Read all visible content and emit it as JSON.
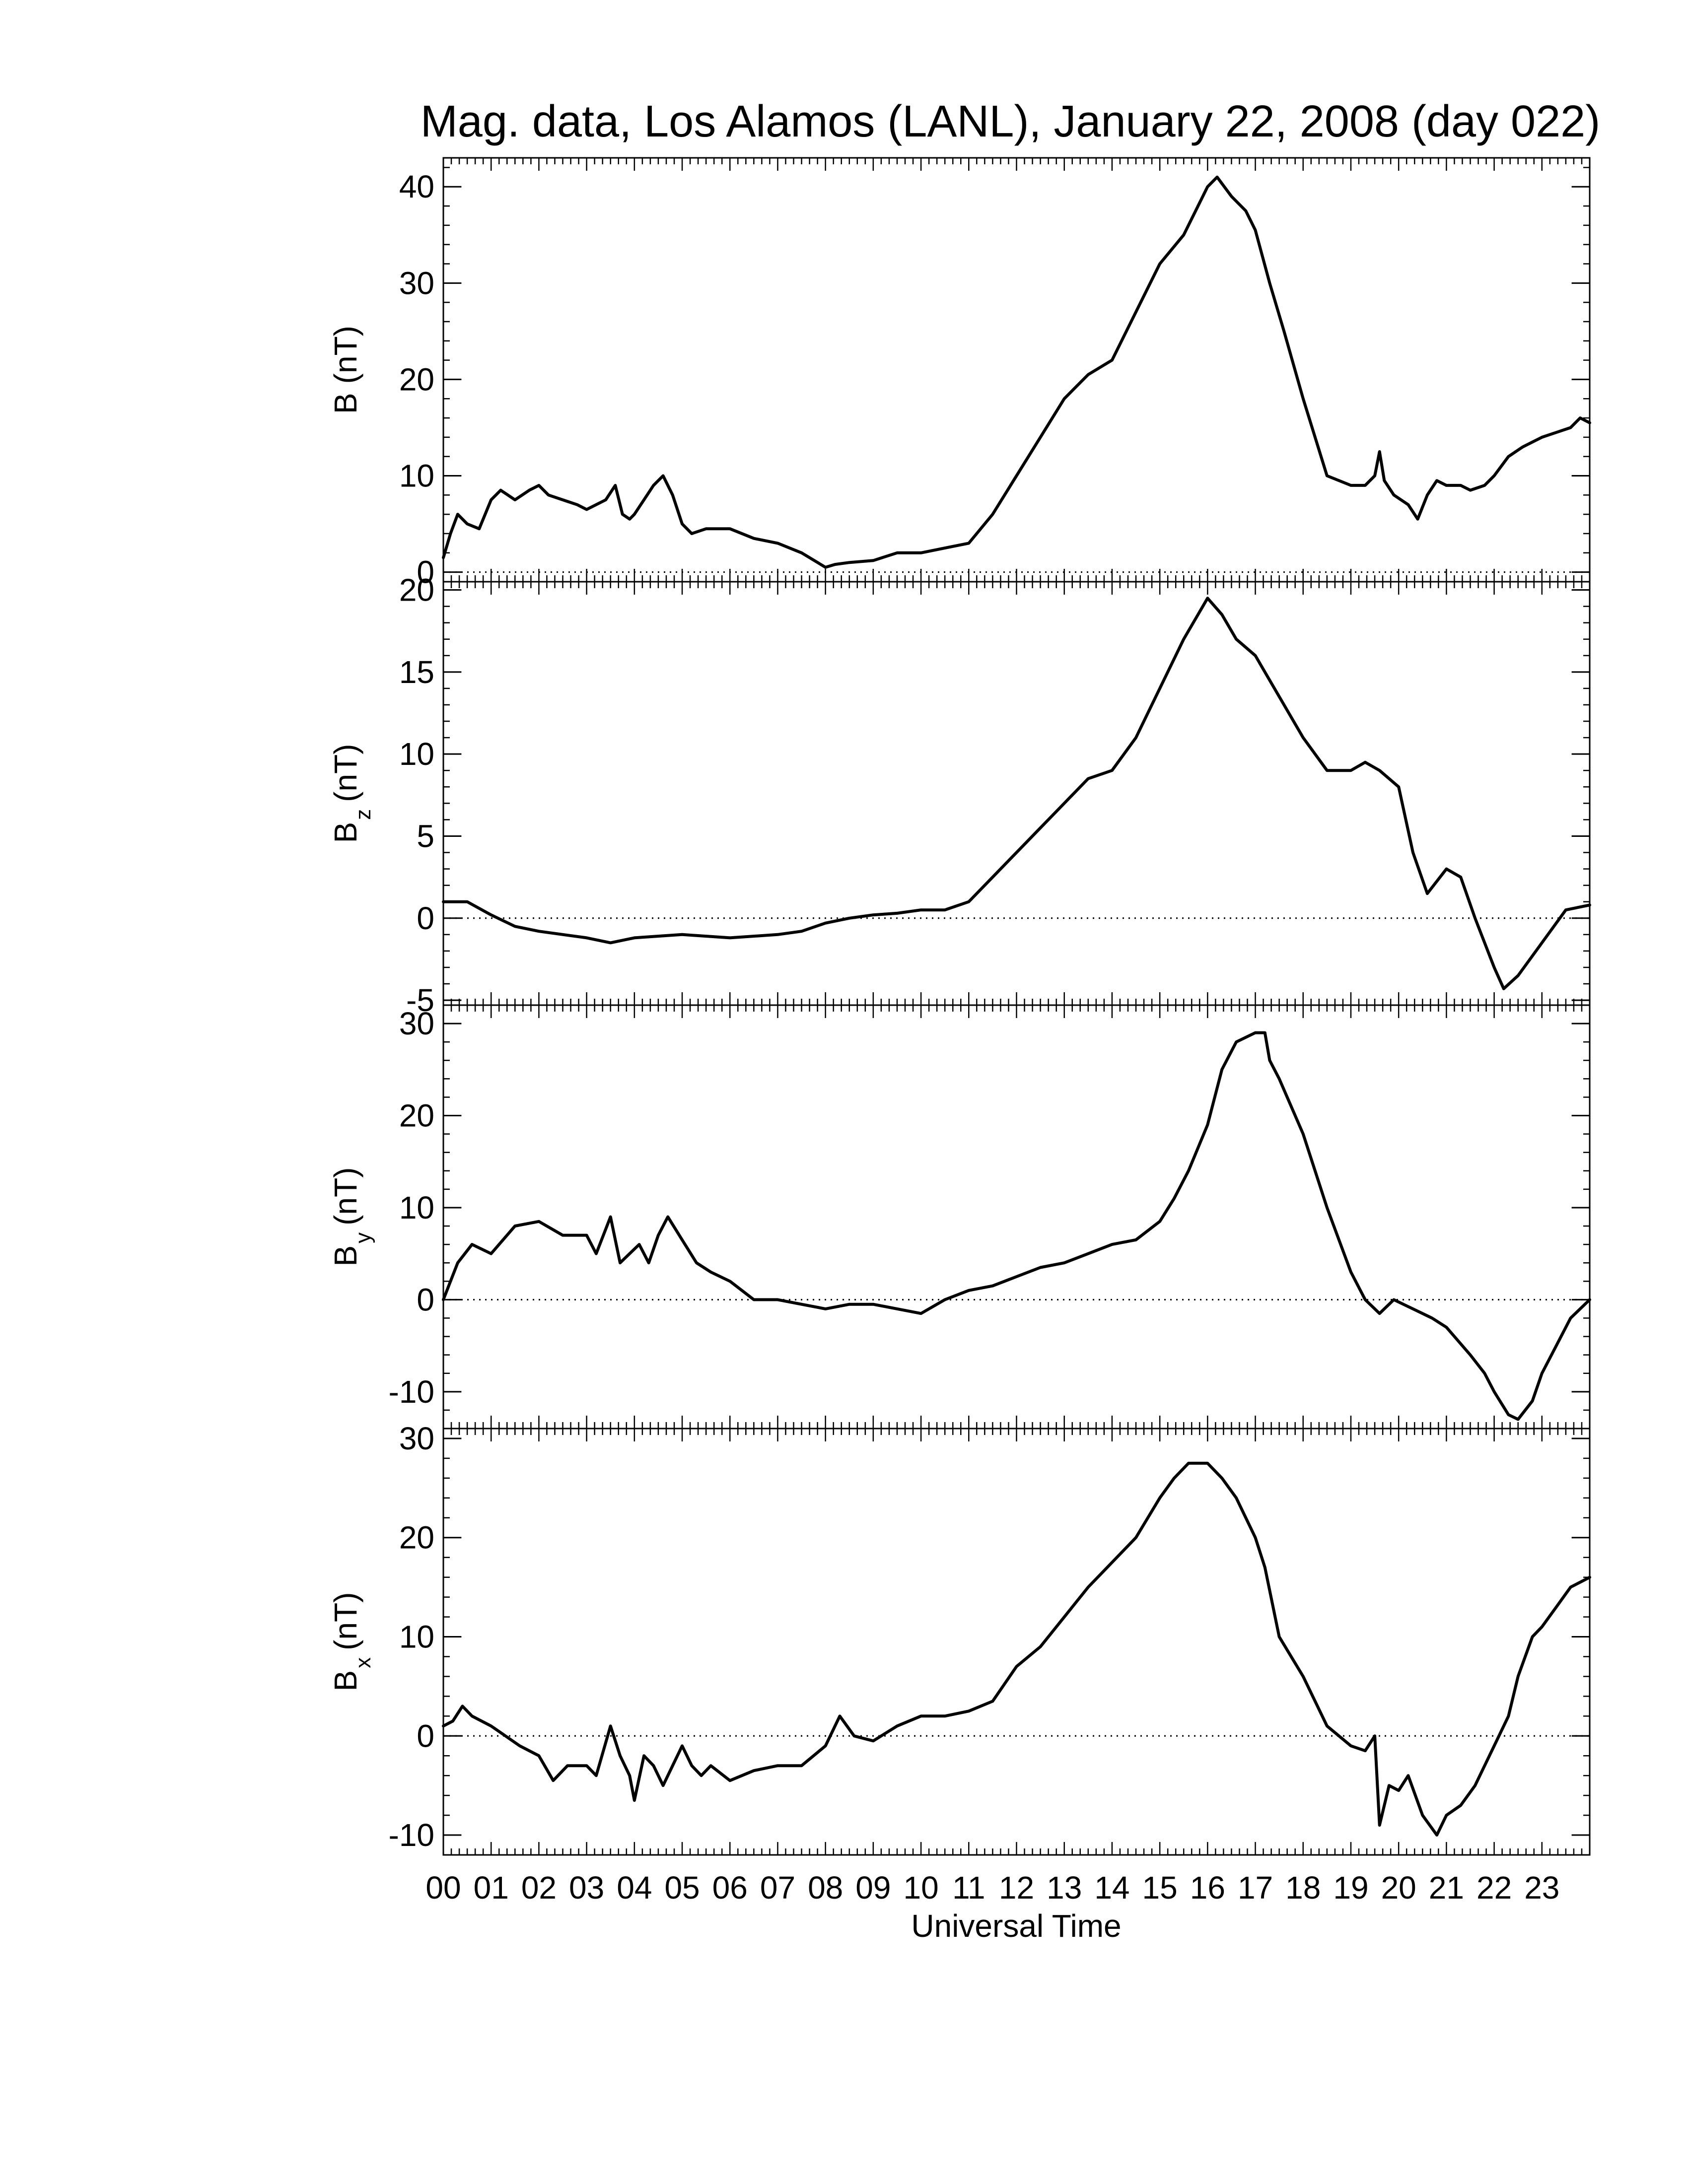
{
  "chart_data": {
    "title": "Mag. data, Los Alamos (LANL), January 22, 2008 (day 022)",
    "xlabel": "Universal Time",
    "xlim": [
      0,
      24
    ],
    "x_ticklabels": [
      "00",
      "01",
      "02",
      "03",
      "04",
      "05",
      "06",
      "07",
      "08",
      "09",
      "10",
      "11",
      "12",
      "13",
      "14",
      "15",
      "16",
      "17",
      "18",
      "19",
      "20",
      "21",
      "22",
      "23"
    ],
    "line_color": "#000000",
    "zero_line": "dotted",
    "panels": [
      {
        "type": "line",
        "ylabel_main": "B",
        "ylabel_sub": "",
        "ylabel_unit": "(nT)",
        "ylim": [
          -1,
          43
        ],
        "yticks": [
          0,
          10,
          20,
          30,
          40
        ],
        "ytick_labels": [
          "0",
          "10",
          "20",
          "30",
          "40"
        ],
        "x": [
          0,
          0.15,
          0.3,
          0.5,
          0.75,
          1,
          1.2,
          1.5,
          1.8,
          2,
          2.2,
          2.5,
          2.8,
          3,
          3.2,
          3.4,
          3.6,
          3.75,
          3.9,
          4,
          4.2,
          4.4,
          4.6,
          4.8,
          5,
          5.2,
          5.5,
          6,
          6.5,
          7,
          7.5,
          8,
          8.2,
          8.5,
          9,
          9.5,
          10,
          10.5,
          11,
          11.5,
          12,
          12.5,
          13,
          13.5,
          14,
          14.5,
          15,
          15.5,
          15.8,
          16,
          16.2,
          16.5,
          16.8,
          17,
          17.3,
          17.6,
          18,
          18.5,
          19,
          19.3,
          19.5,
          19.6,
          19.7,
          19.9,
          20.2,
          20.4,
          20.6,
          20.8,
          21,
          21.3,
          21.5,
          21.8,
          22,
          22.3,
          22.6,
          23,
          23.3,
          23.6,
          23.8,
          24
        ],
        "values": [
          1.5,
          4,
          6,
          5,
          4.5,
          7.5,
          8.5,
          7.5,
          8.5,
          9,
          8,
          7.5,
          7,
          6.5,
          7,
          7.5,
          9,
          6,
          5.5,
          6,
          7.5,
          9,
          10,
          8,
          5,
          4,
          4.5,
          4.5,
          3.5,
          3,
          2,
          0.5,
          0.8,
          1,
          1.2,
          2,
          2,
          2.5,
          3,
          6,
          10,
          14,
          18,
          20.5,
          22,
          27,
          32,
          35,
          38,
          40,
          41,
          39,
          37.5,
          35.5,
          30,
          25,
          18,
          10,
          9,
          9,
          10,
          12.5,
          9.5,
          8,
          7,
          5.5,
          8,
          9.5,
          9,
          9,
          8.5,
          9,
          10,
          12,
          13,
          14,
          14.5,
          15,
          16,
          15.5
        ]
      },
      {
        "type": "line",
        "ylabel_main": "B",
        "ylabel_sub": "z",
        "ylabel_unit": "(nT)",
        "ylim": [
          -5.3,
          20.5
        ],
        "yticks": [
          -5,
          0,
          5,
          10,
          15,
          20
        ],
        "ytick_labels": [
          "-5",
          "0",
          "5",
          "10",
          "15",
          "20"
        ],
        "x": [
          0,
          0.5,
          1,
          1.5,
          2,
          3,
          3.5,
          4,
          5,
          6,
          7,
          7.5,
          8,
          8.5,
          9,
          9.5,
          10,
          10.5,
          11,
          11.5,
          12,
          12.5,
          13,
          13.5,
          14,
          14.5,
          15,
          15.5,
          15.8,
          16,
          16.3,
          16.6,
          17,
          17.5,
          18,
          18.5,
          19,
          19.3,
          19.6,
          20,
          20.3,
          20.6,
          21,
          21.3,
          21.6,
          22,
          22.2,
          22.5,
          23,
          23.5,
          24
        ],
        "values": [
          1,
          1,
          0.2,
          -0.5,
          -0.8,
          -1.2,
          -1.5,
          -1.2,
          -1,
          -1.2,
          -1,
          -0.8,
          -0.3,
          0,
          0.2,
          0.3,
          0.5,
          0.5,
          1,
          2.5,
          4,
          5.5,
          7,
          8.5,
          9,
          11,
          14,
          17,
          18.5,
          19.5,
          18.5,
          17,
          16,
          13.5,
          11,
          9,
          9,
          9.5,
          9,
          8,
          4,
          1.5,
          3,
          2.5,
          0,
          -3,
          -4.3,
          -3.5,
          -1.5,
          0.5,
          0.8
        ]
      },
      {
        "type": "line",
        "ylabel_main": "B",
        "ylabel_sub": "y",
        "ylabel_unit": "(nT)",
        "ylim": [
          -14,
          32
        ],
        "yticks": [
          -10,
          0,
          10,
          20,
          30
        ],
        "ytick_labels": [
          "-10",
          "0",
          "10",
          "20",
          "30"
        ],
        "x": [
          0,
          0.3,
          0.6,
          1,
          1.5,
          2,
          2.5,
          3,
          3.2,
          3.5,
          3.7,
          3.9,
          4.1,
          4.3,
          4.5,
          4.7,
          5,
          5.3,
          5.6,
          6,
          6.5,
          7,
          7.5,
          8,
          8.5,
          9,
          9.5,
          10,
          10.5,
          11,
          11.5,
          12,
          12.5,
          13,
          13.5,
          14,
          14.5,
          15,
          15.3,
          15.6,
          16,
          16.3,
          16.6,
          17,
          17.2,
          17.3,
          17.5,
          18,
          18.5,
          19,
          19.3,
          19.6,
          19.9,
          20.3,
          20.7,
          21,
          21.5,
          21.8,
          22,
          22.3,
          22.5,
          22.8,
          23,
          23.3,
          23.6,
          24
        ],
        "values": [
          0,
          4,
          6,
          5,
          8,
          8.5,
          7,
          7,
          5,
          9,
          4,
          5,
          6,
          4,
          7,
          9,
          6.5,
          4,
          3,
          2,
          0,
          0,
          -0.5,
          -1,
          -0.5,
          -0.5,
          -1,
          -1.5,
          0,
          1,
          1.5,
          2.5,
          3.5,
          4,
          5,
          6,
          6.5,
          8.5,
          11,
          14,
          19,
          25,
          28,
          29,
          29,
          26,
          24,
          18,
          10,
          3,
          0,
          -1.5,
          0,
          -1,
          -2,
          -3,
          -6,
          -8,
          -10,
          -12.5,
          -13,
          -11,
          -8,
          -5,
          -2,
          0
        ]
      },
      {
        "type": "line",
        "ylabel_main": "B",
        "ylabel_sub": "x",
        "ylabel_unit": "(nT)",
        "ylim": [
          -12,
          31
        ],
        "yticks": [
          -10,
          0,
          10,
          20,
          30
        ],
        "ytick_labels": [
          "-10",
          "0",
          "10",
          "20",
          "30"
        ],
        "x": [
          0,
          0.2,
          0.4,
          0.6,
          1,
          1.3,
          1.6,
          2,
          2.3,
          2.6,
          3,
          3.2,
          3.5,
          3.7,
          3.9,
          4,
          4.2,
          4.4,
          4.6,
          4.8,
          5,
          5.2,
          5.4,
          5.6,
          6,
          6.5,
          7,
          7.5,
          8,
          8.3,
          8.6,
          9,
          9.5,
          10,
          10.5,
          11,
          11.5,
          12,
          12.5,
          13,
          13.5,
          14,
          14.5,
          15,
          15.3,
          15.6,
          16,
          16.3,
          16.6,
          16.8,
          17,
          17.2,
          17.5,
          18,
          18.5,
          19,
          19.3,
          19.5,
          19.6,
          19.8,
          20,
          20.2,
          20.5,
          20.8,
          21,
          21.3,
          21.6,
          22,
          22.3,
          22.5,
          22.8,
          23,
          23.3,
          23.6,
          24
        ],
        "values": [
          1,
          1.5,
          3,
          2,
          1,
          0,
          -1,
          -2,
          -4.5,
          -3,
          -3,
          -4,
          1,
          -2,
          -4,
          -6.5,
          -2,
          -3,
          -5,
          -3,
          -1,
          -3,
          -4,
          -3,
          -4.5,
          -3.5,
          -3,
          -3,
          -1,
          2,
          0,
          -0.5,
          1,
          2,
          2,
          2.5,
          3.5,
          7,
          9,
          12,
          15,
          17.5,
          20,
          24,
          26,
          27.5,
          27.5,
          26,
          24,
          22,
          20,
          17,
          10,
          6,
          1,
          -1,
          -1.5,
          0,
          -9,
          -5,
          -5.5,
          -4,
          -8,
          -10,
          -8,
          -7,
          -5,
          -1,
          2,
          6,
          10,
          11,
          13,
          15,
          16
        ]
      }
    ]
  }
}
